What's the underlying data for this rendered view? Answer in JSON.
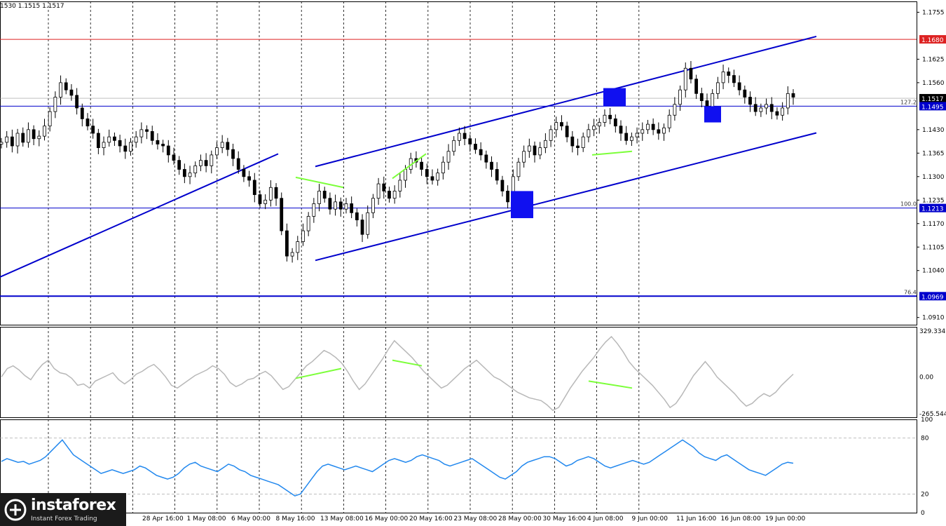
{
  "header": {
    "ohlc": "1530 1.1515 1.1517"
  },
  "watermark": {
    "brand": "instaforex",
    "tagline": "Instant Forex Trading"
  },
  "colors": {
    "candle": "#000000",
    "channel": "#0000cc",
    "level_red": "#dd2222",
    "level_blue": "#0000cc",
    "divergence": "#7cff3a",
    "box": "#1010f0",
    "cci": "#b8b8b8",
    "rsi": "#2288ee",
    "grid": "#000000"
  },
  "chart_data": [
    {
      "type": "candlestick",
      "symbol_price_axis": [
        "1.1755",
        "1.1680",
        "1.1625",
        "1.1560",
        "1.1517",
        "1.1495",
        "1.1430",
        "1.1365",
        "1.1300",
        "1.1235",
        "1.1213",
        "1.1170",
        "1.1105",
        "1.1040",
        "1.0969",
        "1.0910"
      ],
      "ylim": [
        1.089,
        1.1785
      ],
      "x_tick_labels": [
        "28 Apr 16:00",
        "1 May 08:00",
        "6 May 00:00",
        "8 May 16:00",
        "13 May 08:00",
        "16 May 00:00",
        "20 May 16:00",
        "23 May 08:00",
        "28 May 00:00",
        "30 May 16:00",
        "4 Jun 08:00",
        "9 Jun 00:00",
        "11 Jun 16:00",
        "16 Jun 08:00",
        "19 Jun 00:00"
      ],
      "x_tick_positions": [
        0,
        1,
        2,
        3,
        4,
        5,
        6,
        7,
        8,
        9,
        10,
        11,
        12,
        13,
        14
      ],
      "closes": [
        1.1395,
        1.141,
        1.1385,
        1.142,
        1.1395,
        1.143,
        1.1405,
        1.1412,
        1.144,
        1.148,
        1.152,
        1.156,
        1.154,
        1.1525,
        1.149,
        1.146,
        1.144,
        1.142,
        1.138,
        1.1395,
        1.141,
        1.14,
        1.1385,
        1.137,
        1.1395,
        1.141,
        1.143,
        1.1425,
        1.14,
        1.139,
        1.1385,
        1.136,
        1.1345,
        1.132,
        1.13,
        1.131,
        1.133,
        1.1345,
        1.133,
        1.136,
        1.138,
        1.1395,
        1.1375,
        1.135,
        1.132,
        1.13,
        1.129,
        1.125,
        1.1225,
        1.1235,
        1.127,
        1.124,
        1.115,
        1.108,
        1.109,
        1.112,
        1.115,
        1.119,
        1.1225,
        1.126,
        1.124,
        1.121,
        1.123,
        1.121,
        1.1225,
        1.12,
        1.118,
        1.114,
        1.12,
        1.124,
        1.128,
        1.126,
        1.124,
        1.126,
        1.129,
        1.132,
        1.135,
        1.134,
        1.132,
        1.13,
        1.129,
        1.131,
        1.134,
        1.137,
        1.14,
        1.142,
        1.1405,
        1.139,
        1.1375,
        1.136,
        1.134,
        1.132,
        1.129,
        1.126,
        1.123,
        1.13,
        1.134,
        1.137,
        1.1385,
        1.136,
        1.138,
        1.14,
        1.143,
        1.145,
        1.144,
        1.141,
        1.1385,
        1.138,
        1.141,
        1.143,
        1.144,
        1.145,
        1.147,
        1.146,
        1.144,
        1.142,
        1.14,
        1.141,
        1.142,
        1.143,
        1.1445,
        1.143,
        1.142,
        1.1435,
        1.147,
        1.15,
        1.154,
        1.16,
        1.157,
        1.153,
        1.151,
        1.149,
        1.153,
        1.156,
        1.159,
        1.158,
        1.156,
        1.154,
        1.152,
        1.15,
        1.148,
        1.149,
        1.15,
        1.148,
        1.147,
        1.149,
        1.153,
        1.152
      ]
    },
    {
      "type": "line",
      "name": "",
      "axis_labels": [
        "329.3341",
        "0.00",
        "-265.544"
      ],
      "ylim": [
        -290,
        360
      ],
      "values": [
        0,
        60,
        80,
        50,
        10,
        -20,
        40,
        90,
        120,
        60,
        30,
        20,
        -10,
        -60,
        -50,
        -80,
        -30,
        -10,
        10,
        30,
        -20,
        -50,
        -20,
        20,
        40,
        70,
        90,
        50,
        0,
        -60,
        -80,
        -50,
        -20,
        10,
        30,
        50,
        80,
        60,
        20,
        -40,
        -70,
        -50,
        -20,
        -10,
        20,
        40,
        10,
        -40,
        -90,
        -70,
        -20,
        30,
        80,
        110,
        150,
        190,
        170,
        140,
        100,
        40,
        -30,
        -90,
        -50,
        10,
        70,
        130,
        200,
        260,
        220,
        180,
        140,
        90,
        40,
        0,
        -40,
        -80,
        -60,
        -20,
        20,
        60,
        90,
        120,
        80,
        40,
        0,
        -20,
        -50,
        -80,
        -110,
        -130,
        -150,
        -160,
        -170,
        -200,
        -240,
        -220,
        -150,
        -80,
        -20,
        40,
        90,
        140,
        200,
        250,
        290,
        240,
        180,
        110,
        60,
        20,
        -20,
        -60,
        -110,
        -160,
        -220,
        -190,
        -130,
        -60,
        10,
        60,
        110,
        60,
        0,
        -40,
        -80,
        -120,
        -170,
        -210,
        -190,
        -150,
        -120,
        -140,
        -110,
        -60,
        -20,
        20
      ]
    },
    {
      "type": "line",
      "name": "",
      "axis_labels": [
        "100",
        "80",
        "20",
        "0"
      ],
      "ylim": [
        0,
        100
      ],
      "levels": [
        80,
        20
      ],
      "values": [
        55,
        58,
        56,
        54,
        55,
        52,
        54,
        56,
        60,
        66,
        72,
        78,
        70,
        62,
        58,
        54,
        50,
        46,
        42,
        44,
        46,
        44,
        42,
        44,
        46,
        50,
        48,
        44,
        40,
        38,
        36,
        38,
        42,
        48,
        52,
        54,
        50,
        48,
        46,
        44,
        48,
        52,
        50,
        46,
        44,
        40,
        38,
        36,
        34,
        32,
        30,
        26,
        22,
        18,
        20,
        28,
        36,
        44,
        50,
        52,
        50,
        48,
        46,
        48,
        50,
        48,
        46,
        44,
        48,
        52,
        56,
        58,
        56,
        54,
        56,
        60,
        62,
        60,
        58,
        56,
        52,
        50,
        52,
        54,
        56,
        58,
        54,
        50,
        46,
        42,
        38,
        36,
        40,
        44,
        50,
        54,
        56,
        58,
        60,
        60,
        58,
        54,
        50,
        52,
        56,
        58,
        60,
        58,
        54,
        50,
        48,
        50,
        52,
        54,
        56,
        54,
        52,
        54,
        58,
        62,
        66,
        70,
        74,
        78,
        74,
        70,
        64,
        60,
        58,
        56,
        60,
        62,
        58,
        54,
        50,
        46,
        44,
        42,
        40,
        44,
        48,
        52,
        54,
        53
      ]
    }
  ]
}
